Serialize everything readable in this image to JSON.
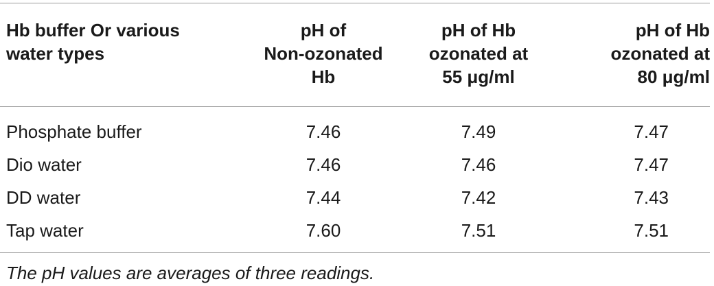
{
  "table": {
    "headers": [
      "Hb buffer Or various\nwater types",
      "pH of\nNon-ozonated\nHb",
      "pH of Hb\nozonated at\n55 μg/ml",
      "pH of Hb\nozonated at\n80 μg/ml"
    ],
    "rows": [
      [
        "Phosphate buffer",
        "7.46",
        "7.49",
        "7.47"
      ],
      [
        "Dio water",
        "7.46",
        "7.46",
        "7.47"
      ],
      [
        "DD water",
        "7.44",
        "7.42",
        "7.43"
      ],
      [
        "Tap water",
        "7.60",
        "7.51",
        "7.51"
      ]
    ],
    "footnote": "The pH values are averages of three readings."
  }
}
